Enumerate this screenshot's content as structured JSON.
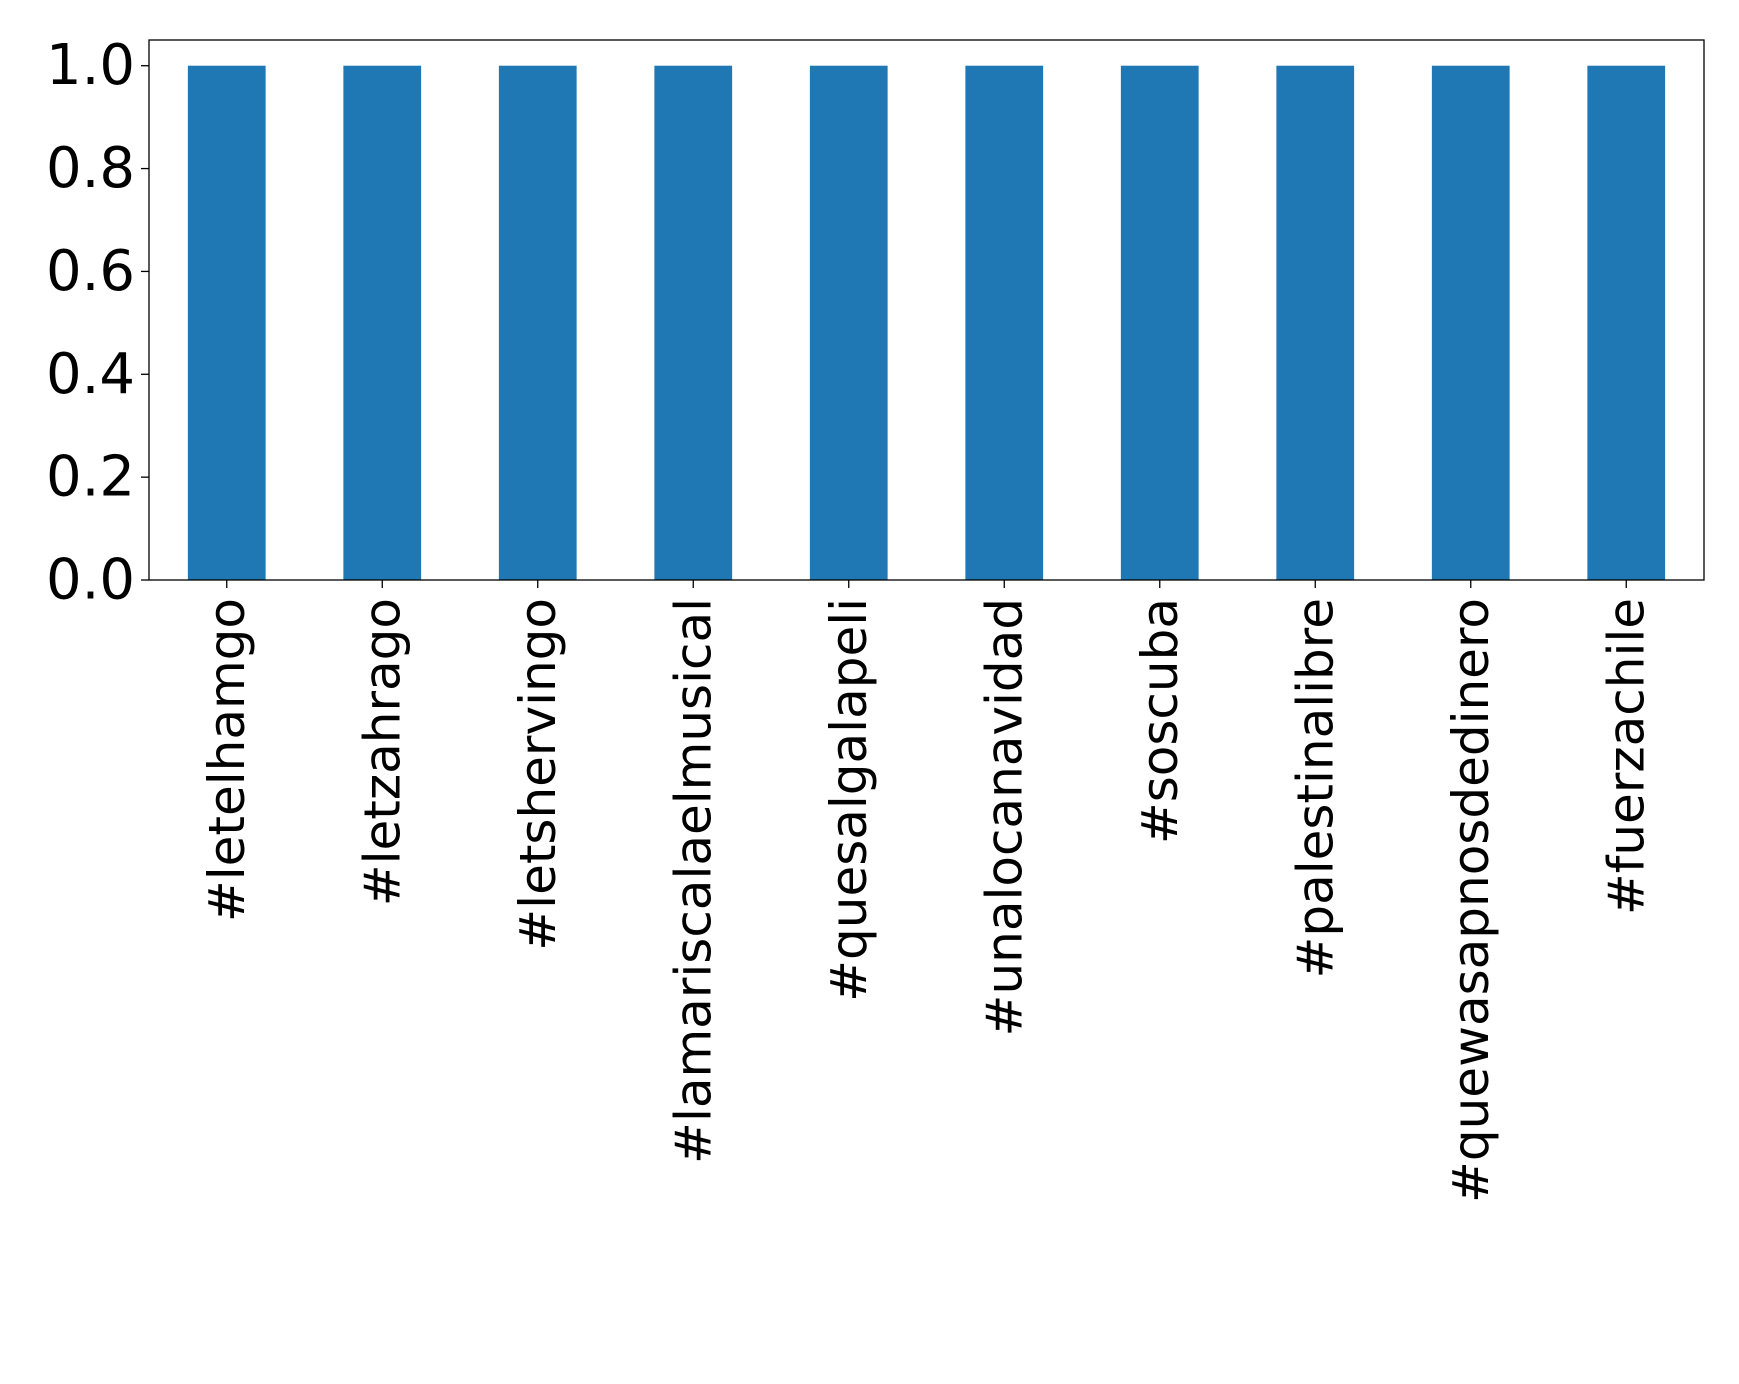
{
  "chart_data": {
    "type": "bar",
    "title": "",
    "xlabel": "",
    "ylabel": "",
    "categories": [
      "#letelhamgo",
      "#letzahrago",
      "#letshervingo",
      "#lamariscalaelmusical",
      "#quesalgalapeli",
      "#unalocanavidad",
      "#soscuba",
      "#palestinalibre",
      "#quewasapnosdedinero",
      "#fuerzachile"
    ],
    "values": [
      1.0,
      1.0,
      1.0,
      1.0,
      1.0,
      1.0,
      1.0,
      1.0,
      1.0,
      1.0
    ],
    "ylim": [
      0,
      1.05
    ],
    "yticks": [
      "0.0",
      "0.2",
      "0.4",
      "0.6",
      "0.8",
      "1.0"
    ],
    "grid": false,
    "legend": "none",
    "colors": {
      "bar": "#1f77b4",
      "axis": "#000000"
    }
  }
}
